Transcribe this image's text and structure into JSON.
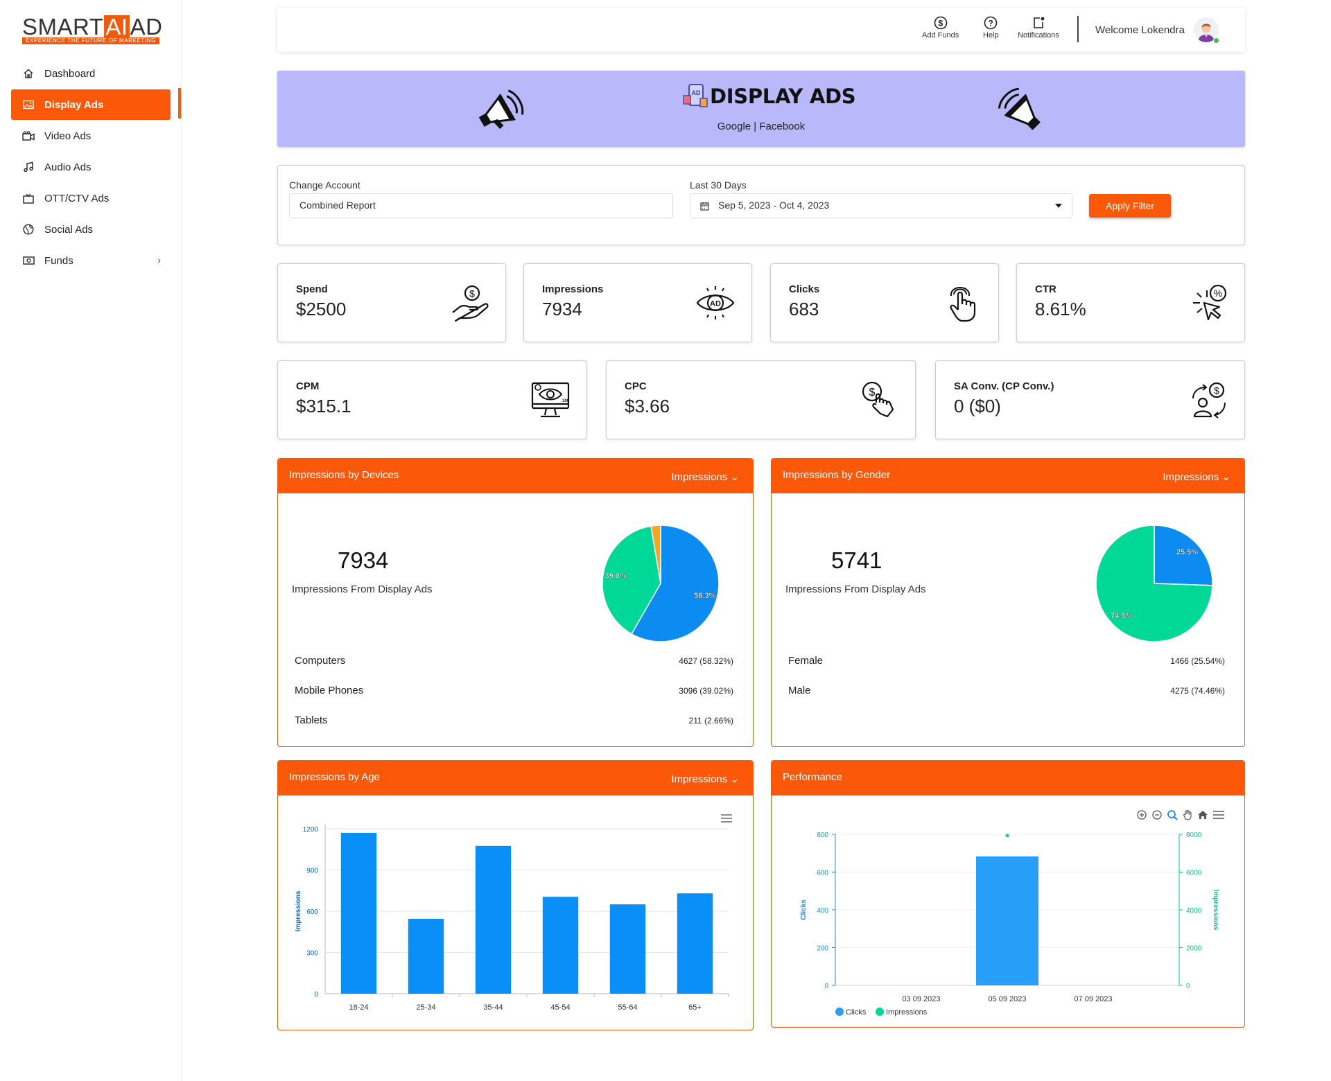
{
  "brand": {
    "name_pre": "SMART",
    "name_ai": "AI",
    "name_post": "AD",
    "tagline": "EXPERIENCE THE FUTURE OF MARKETING",
    "accent": "#fb5809"
  },
  "sidebar": {
    "items": [
      {
        "label": "Dashboard",
        "icon": "home-icon"
      },
      {
        "label": "Display Ads",
        "icon": "image-icon",
        "active": true
      },
      {
        "label": "Video Ads",
        "icon": "video-camera-icon"
      },
      {
        "label": "Audio Ads",
        "icon": "music-note-icon"
      },
      {
        "label": "OTT/CTV Ads",
        "icon": "tv-icon"
      },
      {
        "label": "Social Ads",
        "icon": "globe-icon"
      },
      {
        "label": "Funds",
        "icon": "money-icon",
        "chevron": "›"
      }
    ]
  },
  "topbar": {
    "add_funds": "Add Funds",
    "help": "Help",
    "notifications": "Notifications",
    "welcome": "Welcome Lokendra"
  },
  "banner": {
    "title": "DISPLAY ADS",
    "subtitle": "Google | Facebook"
  },
  "filter": {
    "account_label": "Change Account",
    "account_value": "Combined Report",
    "range_label": "Last 30 Days",
    "range_value": "Sep 5, 2023 - Oct 4, 2023",
    "apply": "Apply Filter"
  },
  "stats": {
    "spend": {
      "label": "Spend",
      "value": "$2500"
    },
    "impressions": {
      "label": "Impressions",
      "value": "7934"
    },
    "clicks": {
      "label": "Clicks",
      "value": "683"
    },
    "ctr": {
      "label": "CTR",
      "value": "8.61%"
    },
    "cpm": {
      "label": "CPM",
      "value": "$315.1"
    },
    "cpc": {
      "label": "CPC",
      "value": "$3.66"
    },
    "conv": {
      "label": "SA Conv. (CP Conv.)",
      "value": "0 ($0)"
    }
  },
  "devices": {
    "title": "Impressions by Devices",
    "dropdown": "Impressions",
    "total": "7934",
    "subtitle": "Impressions From Display Ads",
    "rows": [
      {
        "label": "Computers",
        "value": "4627 (58.32%)"
      },
      {
        "label": "Mobile Phones",
        "value": "3096 (39.02%)"
      },
      {
        "label": "Tablets",
        "value": "211 (2.66%)"
      }
    ]
  },
  "gender": {
    "title": "Impressions by Gender",
    "dropdown": "Impressions",
    "total": "5741",
    "subtitle": "Impressions From Display Ads",
    "rows": [
      {
        "label": "Female",
        "value": "1466 (25.54%)"
      },
      {
        "label": "Male",
        "value": "4275 (74.46%)"
      }
    ]
  },
  "age": {
    "title": "Impressions by Age",
    "dropdown": "Impressions"
  },
  "performance": {
    "title": "Performance"
  },
  "chart_data": [
    {
      "type": "pie",
      "labels": [
        "Computers",
        "Mobile Phones",
        "Tablets"
      ],
      "values": [
        4627,
        3096,
        211
      ],
      "data_labels": [
        "58.3%",
        "39.0%",
        ""
      ],
      "colors": [
        "#0c8cf0",
        "#00d897",
        "#f5a623"
      ]
    },
    {
      "type": "pie",
      "labels": [
        "Female",
        "Male"
      ],
      "values": [
        1466,
        4275
      ],
      "data_labels": [
        "25.5%",
        "74.5%"
      ],
      "colors": [
        "#0c8cf0",
        "#00d897"
      ]
    },
    {
      "type": "bar",
      "categories": [
        "18-24",
        "25-34",
        "35-44",
        "45-54",
        "55-64",
        "65+"
      ],
      "values": [
        1170,
        545,
        1075,
        705,
        650,
        730
      ],
      "ylabel": "Impressions",
      "ylim": [
        0,
        1200
      ],
      "yticks": [
        0,
        300,
        600,
        900,
        1200
      ],
      "grid": true,
      "color": "#0a8ff8"
    },
    {
      "type": "bar",
      "x_ticks": [
        "03 09 2023",
        "05 09 2023",
        "07 09 2023"
      ],
      "series": [
        {
          "name": "Clicks",
          "type": "bar",
          "x": "05 09 2023",
          "value": 683,
          "color": "#279ff8"
        },
        {
          "name": "Impressions",
          "type": "scatter",
          "x": "05 09 2023",
          "value": 7934,
          "color": "#00d897"
        }
      ],
      "ylabel_left": "Clicks",
      "ylabel_right": "Impressions",
      "ylim_left": [
        0,
        800
      ],
      "ylim_right": [
        0,
        8000
      ],
      "yticks_left": [
        0,
        200,
        400,
        600,
        800
      ],
      "yticks_right": [
        0,
        2000,
        4000,
        6000,
        8000
      ],
      "legend": "bottom-left"
    }
  ]
}
